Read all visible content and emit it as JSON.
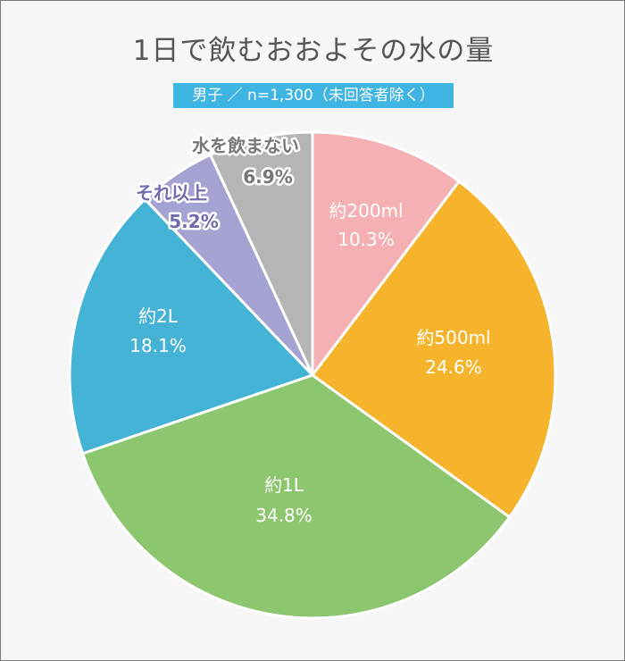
{
  "chart_data": {
    "type": "pie",
    "title": "1日で飲むおおよその水の量",
    "subtitle": "男子 ／ n=1,300（未回答者除く）",
    "slices": [
      {
        "name": "約200ml",
        "value": 10.3,
        "label": "10.3%",
        "color": "#f4b0b2",
        "text_color": "#ffffff",
        "outline": false
      },
      {
        "name": "約500ml",
        "value": 24.6,
        "label": "24.6%",
        "color": "#f6b42c",
        "text_color": "#ffffff",
        "outline": false
      },
      {
        "name": "約1L",
        "value": 34.8,
        "label": "34.8%",
        "color": "#8cc66e",
        "text_color": "#ffffff",
        "outline": false
      },
      {
        "name": "約2L",
        "value": 18.1,
        "label": "18.1%",
        "color": "#44b3d6",
        "text_color": "#ffffff",
        "outline": false
      },
      {
        "name": "それ以上",
        "value": 5.2,
        "label": "5.2%",
        "color": "#a5a3d1",
        "text_color": "#6f6cae",
        "outline": true
      },
      {
        "name": "水を飲まない",
        "value": 6.9,
        "label": "6.9%",
        "color": "#b5b5b5",
        "text_color": "#777777",
        "outline": true
      }
    ]
  }
}
